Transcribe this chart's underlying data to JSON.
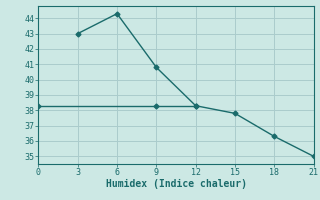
{
  "line1_x": [
    3,
    6,
    9,
    12,
    15,
    18,
    21
  ],
  "line1_y": [
    43.0,
    44.3,
    40.8,
    38.3,
    37.8,
    36.3,
    35.0
  ],
  "line2_x": [
    0,
    9,
    12
  ],
  "line2_y": [
    38.3,
    38.3,
    38.3
  ],
  "color": "#1a6b6b",
  "bg_color": "#cce8e4",
  "grid_color": "#aacccc",
  "xlabel": "Humidex (Indice chaleur)",
  "xlim": [
    0,
    21
  ],
  "ylim": [
    34.5,
    44.8
  ],
  "xticks": [
    0,
    3,
    6,
    9,
    12,
    15,
    18,
    21
  ],
  "yticks": [
    35,
    36,
    37,
    38,
    39,
    40,
    41,
    42,
    43,
    44
  ],
  "marker": "D",
  "marker_size": 2.5,
  "linewidth": 1.0
}
